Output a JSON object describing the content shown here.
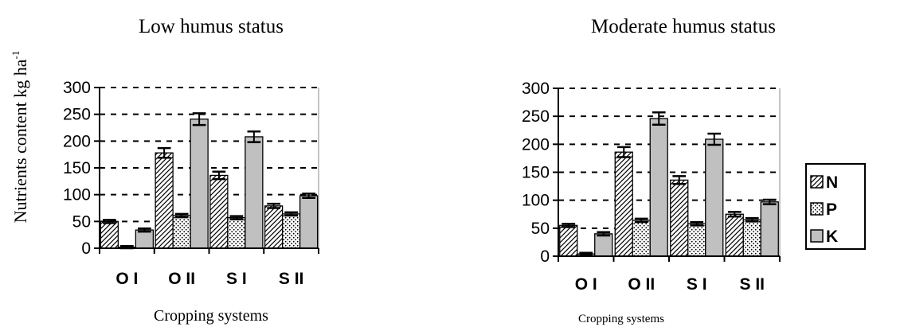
{
  "figure": {
    "ylabel_main": "Nutrients content kg ha",
    "ylabel_sup": "-1",
    "legend": [
      "N",
      "P",
      "K"
    ]
  },
  "colors": {
    "N": "#ffffff",
    "P": "#ffffff",
    "K": "#c0c0c0",
    "axis": "#000000",
    "grid": "#000000"
  },
  "chart_data": [
    {
      "type": "bar",
      "title": "Low humus status",
      "xlabel": "Cropping systems",
      "ylabel": "Nutrients content kg ha-1",
      "categories": [
        "O I",
        "O II",
        "S I",
        "S II"
      ],
      "ylim": [
        0,
        300
      ],
      "yticks": [
        0,
        50,
        100,
        150,
        200,
        250,
        300
      ],
      "grid": "dashed horizontal",
      "series": [
        {
          "name": "N",
          "values": [
            50,
            178,
            136,
            79
          ],
          "errors": [
            3,
            9,
            7,
            4
          ]
        },
        {
          "name": "P",
          "values": [
            2,
            61,
            57,
            64
          ],
          "errors": [
            2,
            3,
            3,
            3
          ]
        },
        {
          "name": "K",
          "values": [
            34,
            241,
            208,
            98
          ],
          "errors": [
            3,
            11,
            10,
            4
          ]
        }
      ]
    },
    {
      "type": "bar",
      "title": "Moderate humus status",
      "xlabel": "Cropping systems",
      "ylabel": "",
      "categories": [
        "O I",
        "O II",
        "S I",
        "S II"
      ],
      "ylim": [
        0,
        300
      ],
      "yticks": [
        0,
        50,
        100,
        150,
        200,
        250,
        300
      ],
      "grid": "dashed horizontal",
      "legend_position": "right",
      "series": [
        {
          "name": "N",
          "values": [
            55,
            186,
            136,
            75
          ],
          "errors": [
            3,
            9,
            7,
            4
          ]
        },
        {
          "name": "P",
          "values": [
            4,
            64,
            58,
            65
          ],
          "errors": [
            2,
            3,
            3,
            3
          ]
        },
        {
          "name": "K",
          "values": [
            40,
            246,
            209,
            97
          ],
          "errors": [
            3,
            11,
            10,
            4
          ]
        }
      ]
    }
  ]
}
